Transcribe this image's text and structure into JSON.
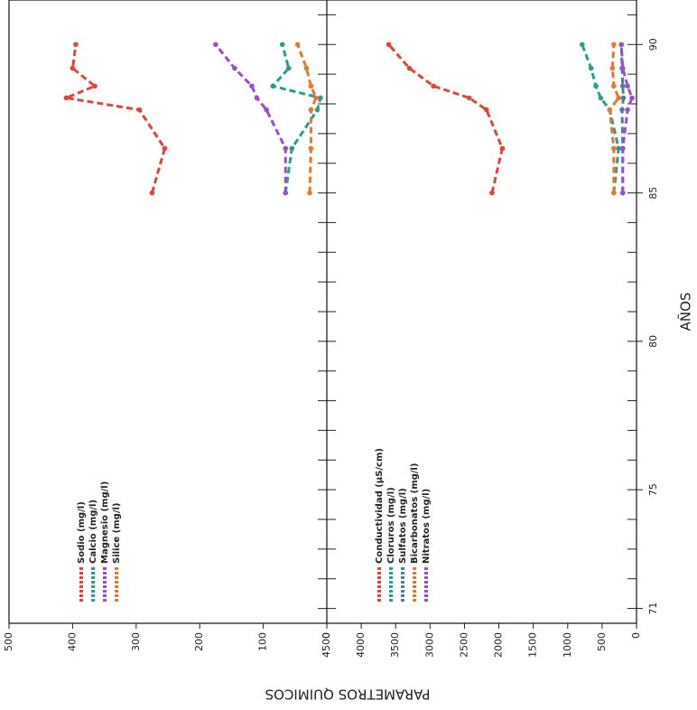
{
  "chart_data": [
    {
      "type": "line",
      "ylabel": "PARAMETROS QUIMICOS",
      "x": [
        85,
        86.5,
        87.8,
        88.2,
        88.6,
        89.2,
        90
      ],
      "xlim": [
        70.5,
        91.5
      ],
      "ylim": [
        0,
        500
      ],
      "yticks": [
        0,
        100,
        200,
        300,
        400,
        500
      ],
      "series": [
        {
          "name": "Sodio (mg/l)",
          "color": "#e0443c",
          "values": [
            275,
            255,
            295,
            410,
            365,
            400,
            395
          ]
        },
        {
          "name": "Calcio (mg/l)",
          "color": "#2a9d8f",
          "values": [
            65,
            55,
            15,
            10,
            85,
            60,
            70
          ]
        },
        {
          "name": "Magnesio (mg/l)",
          "color": "#9b4fd0",
          "values": [
            65,
            65,
            95,
            110,
            118,
            145,
            175
          ]
        },
        {
          "name": "Silice (mg/l)",
          "color": "#e07b30",
          "values": [
            27,
            25,
            25,
            17,
            25,
            32,
            46
          ]
        }
      ]
    },
    {
      "type": "line",
      "xlabel": "AÑOS",
      "x": [
        85,
        86.5,
        87.8,
        88.2,
        88.6,
        89.2,
        90
      ],
      "xlim": [
        70.5,
        91.5
      ],
      "xticks": [
        71,
        75,
        80,
        85,
        90
      ],
      "ylim": [
        0,
        4500
      ],
      "yticks": [
        0,
        500,
        1000,
        1500,
        2000,
        2500,
        3000,
        3500,
        4000,
        4500
      ],
      "series": [
        {
          "name": "Conductividad (µS/cm)",
          "color": "#e0443c",
          "values": [
            2100,
            1950,
            2180,
            2430,
            2950,
            3300,
            3600
          ]
        },
        {
          "name": "Cloruros (mg/l)",
          "color": "#2a9d8f",
          "values": [
            330,
            260,
            390,
            520,
            590,
            660,
            790
          ]
        },
        {
          "name": "Sulfatos (mg/l)",
          "color": "#4a7fa0",
          "values": [
            200,
            200,
            210,
            190,
            200,
            210,
            220
          ]
        },
        {
          "name": "Bicarbonatos (mg/l)",
          "color": "#e07b30",
          "values": [
            330,
            330,
            390,
            260,
            330,
            350,
            330
          ]
        },
        {
          "name": "Nitratos (mg/l)",
          "color": "#9b4fd0",
          "values": [
            200,
            200,
            130,
            65,
            130,
            200,
            220
          ]
        }
      ]
    }
  ]
}
